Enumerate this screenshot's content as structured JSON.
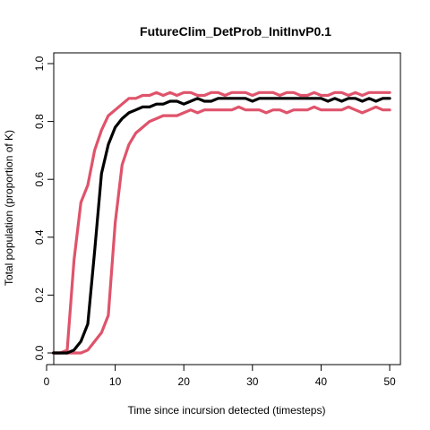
{
  "chart_data": {
    "type": "line",
    "title": "FutureClim_DetProb_InitInvP0.1",
    "xlabel": "Time since incursion detected (timesteps)",
    "ylabel": "Total population (proportion of K)",
    "xlim": [
      1,
      50
    ],
    "ylim": [
      0,
      1
    ],
    "xticks": [
      0,
      10,
      20,
      30,
      40,
      50
    ],
    "yticks": [
      0.0,
      0.2,
      0.4,
      0.6,
      0.8,
      1.0
    ],
    "yticklabels": [
      "0.0",
      "0.2",
      "0.4",
      "0.6",
      "0.8",
      "1.0"
    ],
    "grid": false,
    "legend": "none",
    "x": [
      1,
      2,
      3,
      4,
      5,
      6,
      7,
      8,
      9,
      10,
      11,
      12,
      13,
      14,
      15,
      16,
      17,
      18,
      19,
      20,
      21,
      22,
      23,
      24,
      25,
      26,
      27,
      28,
      29,
      30,
      31,
      32,
      33,
      34,
      35,
      36,
      37,
      38,
      39,
      40,
      41,
      42,
      43,
      44,
      45,
      46,
      47,
      48,
      49,
      50
    ],
    "series": [
      {
        "color": "#000000",
        "values": [
          0.0,
          0.0,
          0.0,
          0.01,
          0.04,
          0.1,
          0.35,
          0.62,
          0.72,
          0.78,
          0.81,
          0.83,
          0.84,
          0.85,
          0.85,
          0.86,
          0.86,
          0.87,
          0.87,
          0.86,
          0.87,
          0.88,
          0.87,
          0.87,
          0.88,
          0.88,
          0.88,
          0.88,
          0.88,
          0.87,
          0.88,
          0.88,
          0.88,
          0.88,
          0.88,
          0.88,
          0.88,
          0.88,
          0.88,
          0.88,
          0.87,
          0.88,
          0.87,
          0.88,
          0.88,
          0.87,
          0.88,
          0.87,
          0.88,
          0.88
        ]
      },
      {
        "color": "#DF536B",
        "values": [
          0.0,
          0.0,
          0.01,
          0.32,
          0.52,
          0.58,
          0.7,
          0.77,
          0.82,
          0.84,
          0.86,
          0.88,
          0.88,
          0.89,
          0.89,
          0.9,
          0.89,
          0.9,
          0.89,
          0.9,
          0.9,
          0.89,
          0.89,
          0.9,
          0.9,
          0.89,
          0.9,
          0.9,
          0.9,
          0.89,
          0.9,
          0.9,
          0.9,
          0.89,
          0.9,
          0.9,
          0.89,
          0.89,
          0.9,
          0.89,
          0.89,
          0.9,
          0.9,
          0.89,
          0.9,
          0.89,
          0.9,
          0.9,
          0.9,
          0.9
        ]
      },
      {
        "color": "#DF536B",
        "values": [
          0.0,
          0.0,
          0.0,
          0.0,
          0.0,
          0.01,
          0.04,
          0.07,
          0.13,
          0.45,
          0.65,
          0.72,
          0.76,
          0.78,
          0.8,
          0.81,
          0.82,
          0.82,
          0.82,
          0.83,
          0.84,
          0.83,
          0.84,
          0.84,
          0.84,
          0.84,
          0.84,
          0.85,
          0.84,
          0.84,
          0.84,
          0.83,
          0.84,
          0.84,
          0.83,
          0.84,
          0.84,
          0.84,
          0.85,
          0.84,
          0.84,
          0.84,
          0.84,
          0.85,
          0.84,
          0.83,
          0.84,
          0.85,
          0.84,
          0.84
        ]
      }
    ]
  }
}
